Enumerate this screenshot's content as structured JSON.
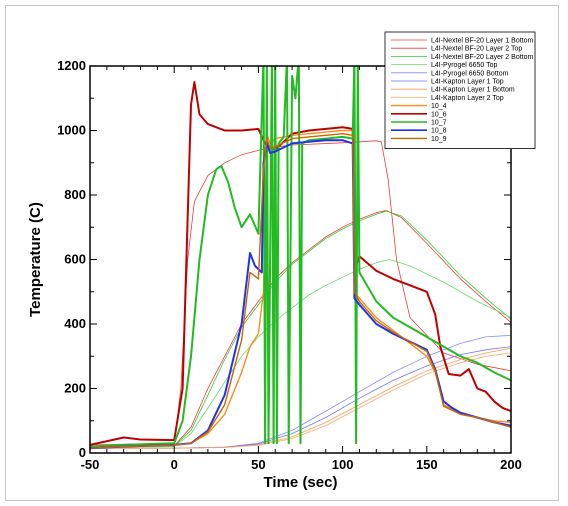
{
  "chart_data": {
    "type": "line",
    "title": "",
    "xlabel": "Time (sec)",
    "ylabel": "Temperature (C)",
    "xlim": [
      -50,
      200
    ],
    "ylim": [
      0,
      1200
    ],
    "x_ticks": [
      -50,
      0,
      50,
      100,
      150,
      200
    ],
    "y_ticks": [
      0,
      200,
      400,
      600,
      800,
      1000,
      1200
    ],
    "legend_position": "top-right",
    "grid": false,
    "series": [
      {
        "name": "L4I-Nextel BF-20 Layer 1 Bottom",
        "color": "#ee3b3b",
        "width": 0.8,
        "points": [
          [
            -50,
            25
          ],
          [
            0,
            30
          ],
          [
            4,
            200
          ],
          [
            8,
            600
          ],
          [
            12,
            780
          ],
          [
            20,
            860
          ],
          [
            30,
            900
          ],
          [
            40,
            925
          ],
          [
            55,
            945
          ],
          [
            70,
            955
          ],
          [
            100,
            962
          ],
          [
            120,
            968
          ],
          [
            123,
            965
          ],
          [
            127,
            850
          ],
          [
            132,
            600
          ],
          [
            140,
            420
          ],
          [
            160,
            310
          ],
          [
            180,
            275
          ],
          [
            200,
            255
          ]
        ]
      },
      {
        "name": "L4I-Nextel BF-20 Layer 2 Top",
        "color": "#ee3b3b",
        "width": 0.8,
        "points": [
          [
            -50,
            20
          ],
          [
            0,
            22
          ],
          [
            10,
            80
          ],
          [
            20,
            200
          ],
          [
            30,
            300
          ],
          [
            40,
            400
          ],
          [
            50,
            470
          ],
          [
            60,
            540
          ],
          [
            70,
            590
          ],
          [
            80,
            630
          ],
          [
            90,
            670
          ],
          [
            100,
            700
          ],
          [
            110,
            725
          ],
          [
            120,
            745
          ],
          [
            126,
            752
          ],
          [
            135,
            730
          ],
          [
            150,
            650
          ],
          [
            170,
            540
          ],
          [
            185,
            470
          ],
          [
            200,
            405
          ]
        ]
      },
      {
        "name": "L4I-Nextel BF-20 Layer 2 Bottom",
        "color": "#33cc33",
        "width": 0.8,
        "points": [
          [
            -50,
            20
          ],
          [
            0,
            22
          ],
          [
            10,
            70
          ],
          [
            20,
            180
          ],
          [
            30,
            290
          ],
          [
            40,
            390
          ],
          [
            50,
            460
          ],
          [
            60,
            530
          ],
          [
            70,
            585
          ],
          [
            80,
            625
          ],
          [
            90,
            665
          ],
          [
            100,
            695
          ],
          [
            110,
            720
          ],
          [
            120,
            740
          ],
          [
            126,
            750
          ],
          [
            135,
            735
          ],
          [
            150,
            660
          ],
          [
            170,
            550
          ],
          [
            185,
            480
          ],
          [
            200,
            415
          ]
        ]
      },
      {
        "name": "L4I-Pyrogel 6650 Top",
        "color": "#66dd66",
        "width": 0.8,
        "points": [
          [
            -50,
            18
          ],
          [
            0,
            20
          ],
          [
            10,
            60
          ],
          [
            20,
            140
          ],
          [
            30,
            220
          ],
          [
            40,
            300
          ],
          [
            50,
            360
          ],
          [
            60,
            410
          ],
          [
            70,
            450
          ],
          [
            80,
            490
          ],
          [
            90,
            520
          ],
          [
            100,
            545
          ],
          [
            110,
            570
          ],
          [
            120,
            590
          ],
          [
            128,
            600
          ],
          [
            140,
            580
          ],
          [
            160,
            530
          ],
          [
            180,
            470
          ],
          [
            200,
            420
          ]
        ]
      },
      {
        "name": "L4I-Pyrogel 6650 Bottom",
        "color": "#8a8aff",
        "width": 0.8,
        "points": [
          [
            -50,
            15
          ],
          [
            0,
            15
          ],
          [
            30,
            18
          ],
          [
            50,
            30
          ],
          [
            70,
            70
          ],
          [
            90,
            130
          ],
          [
            110,
            190
          ],
          [
            130,
            250
          ],
          [
            150,
            300
          ],
          [
            170,
            340
          ],
          [
            185,
            360
          ],
          [
            200,
            365
          ]
        ]
      },
      {
        "name": "L4I-Kapton Layer 1 Top",
        "color": "#7777ee",
        "width": 0.8,
        "points": [
          [
            -50,
            15
          ],
          [
            0,
            15
          ],
          [
            30,
            18
          ],
          [
            50,
            28
          ],
          [
            70,
            60
          ],
          [
            90,
            110
          ],
          [
            110,
            170
          ],
          [
            130,
            225
          ],
          [
            150,
            270
          ],
          [
            170,
            305
          ],
          [
            185,
            320
          ],
          [
            200,
            330
          ]
        ]
      },
      {
        "name": "L4I-Kapton Layer 1 Bottom",
        "color": "#ff9955",
        "width": 0.8,
        "points": [
          [
            -50,
            15
          ],
          [
            0,
            15
          ],
          [
            30,
            17
          ],
          [
            50,
            25
          ],
          [
            70,
            50
          ],
          [
            90,
            95
          ],
          [
            110,
            150
          ],
          [
            130,
            205
          ],
          [
            150,
            255
          ],
          [
            170,
            290
          ],
          [
            185,
            310
          ],
          [
            200,
            325
          ]
        ]
      },
      {
        "name": "L4I-Kapton Layer 2 Top",
        "color": "#ffaa66",
        "width": 0.8,
        "points": [
          [
            -50,
            15
          ],
          [
            0,
            15
          ],
          [
            30,
            17
          ],
          [
            50,
            24
          ],
          [
            70,
            45
          ],
          [
            90,
            85
          ],
          [
            110,
            140
          ],
          [
            130,
            195
          ],
          [
            150,
            245
          ],
          [
            170,
            280
          ],
          [
            185,
            300
          ],
          [
            200,
            310
          ]
        ]
      },
      {
        "name": "10_4",
        "color": "#ff8c1a",
        "width": 1.4,
        "points": [
          [
            -50,
            15
          ],
          [
            -30,
            20
          ],
          [
            0,
            25
          ],
          [
            10,
            30
          ],
          [
            20,
            60
          ],
          [
            30,
            120
          ],
          [
            40,
            250
          ],
          [
            45,
            330
          ],
          [
            50,
            370
          ],
          [
            53,
            500
          ],
          [
            55,
            990
          ],
          [
            57,
            960
          ],
          [
            60,
            975
          ],
          [
            70,
            985
          ],
          [
            80,
            990
          ],
          [
            90,
            995
          ],
          [
            100,
            1000
          ],
          [
            106,
            1000
          ],
          [
            107,
            500
          ],
          [
            110,
            480
          ],
          [
            120,
            420
          ],
          [
            130,
            380
          ],
          [
            140,
            340
          ],
          [
            150,
            300
          ],
          [
            155,
            250
          ],
          [
            160,
            150
          ],
          [
            170,
            120
          ],
          [
            180,
            110
          ],
          [
            190,
            100
          ],
          [
            200,
            95
          ]
        ]
      },
      {
        "name": "10_6",
        "color": "#c00000",
        "width": 2.0,
        "points": [
          [
            -50,
            25
          ],
          [
            -30,
            48
          ],
          [
            -20,
            42
          ],
          [
            0,
            40
          ],
          [
            5,
            200
          ],
          [
            10,
            1080
          ],
          [
            12,
            1150
          ],
          [
            15,
            1050
          ],
          [
            20,
            1020
          ],
          [
            30,
            1000
          ],
          [
            40,
            1000
          ],
          [
            50,
            1005
          ],
          [
            54,
            960
          ],
          [
            57,
            945
          ],
          [
            60,
            940
          ],
          [
            70,
            990
          ],
          [
            80,
            1000
          ],
          [
            90,
            1005
          ],
          [
            100,
            1010
          ],
          [
            106,
            1005
          ],
          [
            108,
            580
          ],
          [
            110,
            610
          ],
          [
            120,
            565
          ],
          [
            130,
            540
          ],
          [
            140,
            520
          ],
          [
            150,
            500
          ],
          [
            155,
            430
          ],
          [
            158,
            330
          ],
          [
            163,
            245
          ],
          [
            170,
            240
          ],
          [
            175,
            260
          ],
          [
            180,
            200
          ],
          [
            185,
            190
          ],
          [
            190,
            160
          ],
          [
            195,
            140
          ],
          [
            200,
            130
          ]
        ]
      },
      {
        "name": "10_7",
        "color": "#22bb22",
        "width": 2.0,
        "points": [
          [
            -50,
            20
          ],
          [
            -30,
            25
          ],
          [
            0,
            30
          ],
          [
            5,
            100
          ],
          [
            10,
            300
          ],
          [
            15,
            600
          ],
          [
            20,
            800
          ],
          [
            25,
            880
          ],
          [
            28,
            890
          ],
          [
            32,
            840
          ],
          [
            36,
            760
          ],
          [
            40,
            700
          ],
          [
            45,
            740
          ],
          [
            50,
            680
          ],
          [
            53,
            1230
          ],
          [
            54,
            30
          ],
          [
            55,
            1230
          ],
          [
            56,
            30
          ],
          [
            58,
            1230
          ],
          [
            59,
            30
          ],
          [
            60,
            1230
          ],
          [
            61,
            30
          ],
          [
            62,
            960
          ],
          [
            65,
            980
          ],
          [
            67,
            1230
          ],
          [
            68,
            30
          ],
          [
            70,
            1170
          ],
          [
            72,
            1100
          ],
          [
            74,
            1230
          ],
          [
            75,
            30
          ],
          [
            76,
            960
          ],
          [
            80,
            970
          ],
          [
            90,
            975
          ],
          [
            100,
            980
          ],
          [
            106,
            975
          ],
          [
            107,
            1230
          ],
          [
            108,
            30
          ],
          [
            109,
            1230
          ],
          [
            110,
            560
          ],
          [
            120,
            470
          ],
          [
            130,
            420
          ],
          [
            140,
            390
          ],
          [
            150,
            360
          ],
          [
            160,
            330
          ],
          [
            170,
            300
          ],
          [
            180,
            280
          ],
          [
            190,
            250
          ],
          [
            200,
            225
          ]
        ]
      },
      {
        "name": "10_8",
        "color": "#2233ee",
        "width": 2.0,
        "points": [
          [
            -50,
            15
          ],
          [
            -30,
            20
          ],
          [
            0,
            25
          ],
          [
            10,
            30
          ],
          [
            20,
            70
          ],
          [
            30,
            180
          ],
          [
            40,
            400
          ],
          [
            45,
            620
          ],
          [
            48,
            580
          ],
          [
            52,
            560
          ],
          [
            53,
            900
          ],
          [
            55,
            960
          ],
          [
            57,
            930
          ],
          [
            60,
            935
          ],
          [
            70,
            960
          ],
          [
            80,
            965
          ],
          [
            90,
            970
          ],
          [
            100,
            970
          ],
          [
            106,
            960
          ],
          [
            107,
            480
          ],
          [
            110,
            460
          ],
          [
            120,
            400
          ],
          [
            130,
            370
          ],
          [
            140,
            345
          ],
          [
            150,
            320
          ],
          [
            155,
            260
          ],
          [
            160,
            160
          ],
          [
            165,
            140
          ],
          [
            170,
            125
          ],
          [
            180,
            110
          ],
          [
            190,
            95
          ],
          [
            200,
            85
          ]
        ]
      },
      {
        "name": "10_9",
        "color": "#cc6600",
        "width": 1.4,
        "points": [
          [
            -50,
            15
          ],
          [
            -30,
            20
          ],
          [
            0,
            25
          ],
          [
            10,
            30
          ],
          [
            20,
            65
          ],
          [
            30,
            150
          ],
          [
            40,
            350
          ],
          [
            45,
            560
          ],
          [
            50,
            540
          ],
          [
            53,
            880
          ],
          [
            55,
            975
          ],
          [
            57,
            945
          ],
          [
            60,
            950
          ],
          [
            70,
            975
          ],
          [
            80,
            980
          ],
          [
            90,
            985
          ],
          [
            100,
            990
          ],
          [
            106,
            985
          ],
          [
            107,
            500
          ],
          [
            110,
            470
          ],
          [
            120,
            410
          ],
          [
            130,
            375
          ],
          [
            140,
            345
          ],
          [
            150,
            315
          ],
          [
            155,
            255
          ],
          [
            160,
            145
          ],
          [
            170,
            120
          ],
          [
            180,
            110
          ],
          [
            190,
            95
          ],
          [
            200,
            80
          ]
        ]
      }
    ]
  }
}
